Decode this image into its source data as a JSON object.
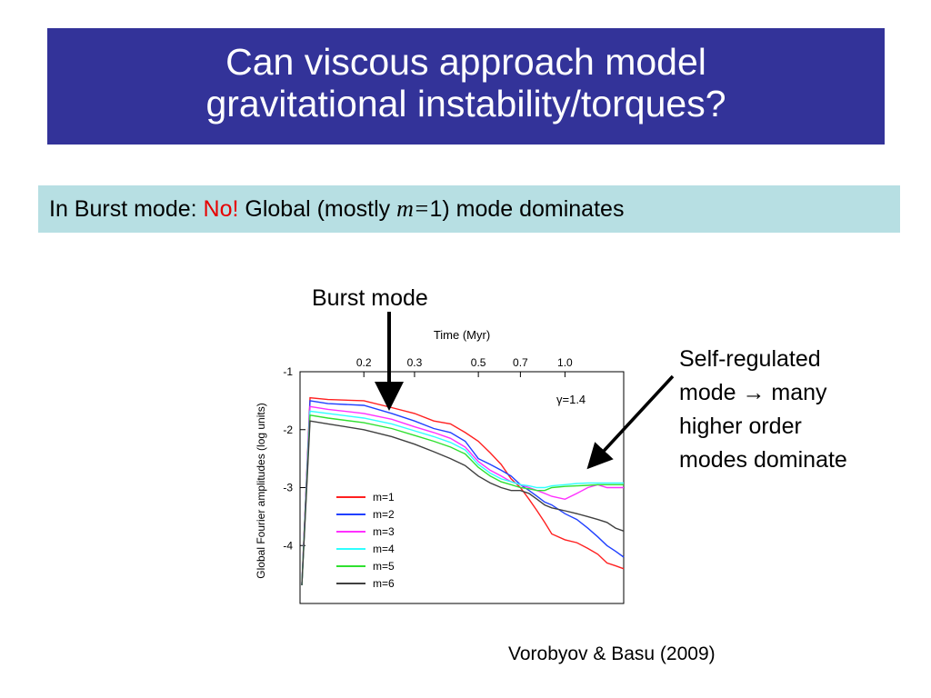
{
  "slide": {
    "title_line1": "Can viscous approach model",
    "title_line2": "gravitational instability/torques?",
    "subtitle_prefix": "In Burst mode: ",
    "subtitle_no": "No!",
    "subtitle_mid": " Global (mostly ",
    "subtitle_m": "m=",
    "subtitle_suffix": "1) mode dominates",
    "burst_label": "Burst mode",
    "selfreg_line1": "Self-regulated",
    "selfreg_line2": "mode → many",
    "selfreg_line3": "higher order",
    "selfreg_line4": "modes dominate",
    "citation": "Vorobyov & Basu (2009)"
  },
  "colors": {
    "title_bg": "#333399",
    "subtitle_bg": "#b7dfe3",
    "accent_red": "#e60000"
  },
  "chart_data": {
    "type": "line",
    "title": "",
    "xlabel": "Time (Myr)",
    "ylabel": "Global Fourier amplitudes (log units)",
    "xlim": [
      0.12,
      1.6
    ],
    "ylim": [
      -5,
      -1
    ],
    "x_ticks": [
      0.2,
      0.3,
      0.5,
      0.7,
      1.0
    ],
    "x_tick_labels": [
      "0.2",
      "0.3",
      "0.5",
      "0.7",
      "1.0"
    ],
    "y_ticks": [
      -1,
      -2,
      -3,
      -4
    ],
    "y_tick_labels": [
      "-1",
      "-2",
      "-3",
      "-4"
    ],
    "annotation": "γ=1.4",
    "legend_position": "bottom-left",
    "series": [
      {
        "name": "m=1",
        "color": "#ff2020",
        "x": [
          0.13,
          0.15,
          0.2,
          0.25,
          0.3,
          0.35,
          0.4,
          0.45,
          0.5,
          0.55,
          0.6,
          0.65,
          0.7,
          0.75,
          0.8,
          0.85,
          0.9,
          1.0,
          1.1,
          1.2,
          1.3,
          1.4,
          1.5,
          1.6
        ],
        "y": [
          -1.45,
          -1.48,
          -1.5,
          -1.62,
          -1.72,
          -1.85,
          -1.9,
          -2.05,
          -2.2,
          -2.4,
          -2.6,
          -2.85,
          -3.0,
          -3.2,
          -3.4,
          -3.6,
          -3.8,
          -3.9,
          -3.95,
          -4.05,
          -4.15,
          -4.3,
          -4.35,
          -4.4
        ]
      },
      {
        "name": "m=2",
        "color": "#2040ff",
        "x": [
          0.13,
          0.15,
          0.2,
          0.25,
          0.3,
          0.35,
          0.4,
          0.45,
          0.5,
          0.55,
          0.6,
          0.65,
          0.7,
          0.75,
          0.8,
          0.85,
          0.9,
          1.0,
          1.1,
          1.2,
          1.3,
          1.4,
          1.5,
          1.6
        ],
        "y": [
          -1.5,
          -1.55,
          -1.58,
          -1.72,
          -1.85,
          -1.98,
          -2.05,
          -2.2,
          -2.5,
          -2.6,
          -2.7,
          -2.8,
          -2.95,
          -3.05,
          -3.15,
          -3.25,
          -3.3,
          -3.45,
          -3.55,
          -3.7,
          -3.85,
          -4.0,
          -4.1,
          -4.2
        ]
      },
      {
        "name": "m=3",
        "color": "#ff30ff",
        "x": [
          0.13,
          0.15,
          0.2,
          0.25,
          0.3,
          0.35,
          0.4,
          0.45,
          0.5,
          0.55,
          0.6,
          0.65,
          0.7,
          0.75,
          0.8,
          0.85,
          0.9,
          1.0,
          1.1,
          1.2,
          1.3,
          1.4,
          1.5,
          1.6
        ],
        "y": [
          -1.6,
          -1.65,
          -1.72,
          -1.82,
          -1.95,
          -2.05,
          -2.15,
          -2.3,
          -2.55,
          -2.7,
          -2.8,
          -2.9,
          -2.95,
          -3.0,
          -3.05,
          -3.1,
          -3.15,
          -3.2,
          -3.1,
          -3.0,
          -2.95,
          -3.0,
          -3.0,
          -3.0
        ]
      },
      {
        "name": "m=4",
        "color": "#30ffff",
        "x": [
          0.13,
          0.15,
          0.2,
          0.25,
          0.3,
          0.35,
          0.4,
          0.45,
          0.5,
          0.55,
          0.6,
          0.65,
          0.7,
          0.75,
          0.8,
          0.85,
          0.9,
          1.0,
          1.1,
          1.2,
          1.3,
          1.4,
          1.5,
          1.6
        ],
        "y": [
          -1.68,
          -1.72,
          -1.8,
          -1.9,
          -2.02,
          -2.12,
          -2.22,
          -2.35,
          -2.6,
          -2.75,
          -2.85,
          -2.9,
          -2.95,
          -2.97,
          -3.0,
          -3.0,
          -2.97,
          -2.95,
          -2.93,
          -2.92,
          -2.92,
          -2.92,
          -2.92,
          -2.92
        ]
      },
      {
        "name": "m=5",
        "color": "#30e030",
        "x": [
          0.13,
          0.15,
          0.2,
          0.25,
          0.3,
          0.35,
          0.4,
          0.45,
          0.5,
          0.55,
          0.6,
          0.65,
          0.7,
          0.75,
          0.8,
          0.85,
          0.9,
          1.0,
          1.1,
          1.2,
          1.3,
          1.4,
          1.5,
          1.6
        ],
        "y": [
          -1.75,
          -1.8,
          -1.88,
          -1.98,
          -2.1,
          -2.2,
          -2.3,
          -2.42,
          -2.65,
          -2.8,
          -2.9,
          -2.95,
          -3.0,
          -3.02,
          -3.05,
          -3.05,
          -3.0,
          -2.98,
          -2.97,
          -2.96,
          -2.95,
          -2.95,
          -2.95,
          -2.95
        ]
      },
      {
        "name": "m=6",
        "color": "#404040",
        "x": [
          0.13,
          0.15,
          0.2,
          0.25,
          0.3,
          0.35,
          0.4,
          0.45,
          0.5,
          0.55,
          0.6,
          0.65,
          0.7,
          0.75,
          0.8,
          0.85,
          0.9,
          1.0,
          1.1,
          1.2,
          1.3,
          1.4,
          1.5,
          1.6
        ],
        "y": [
          -1.85,
          -1.9,
          -2.0,
          -2.12,
          -2.25,
          -2.38,
          -2.5,
          -2.62,
          -2.8,
          -2.92,
          -3.0,
          -3.05,
          -3.05,
          -3.1,
          -3.2,
          -3.3,
          -3.35,
          -3.4,
          -3.45,
          -3.5,
          -3.55,
          -3.6,
          -3.7,
          -3.75
        ]
      }
    ]
  }
}
